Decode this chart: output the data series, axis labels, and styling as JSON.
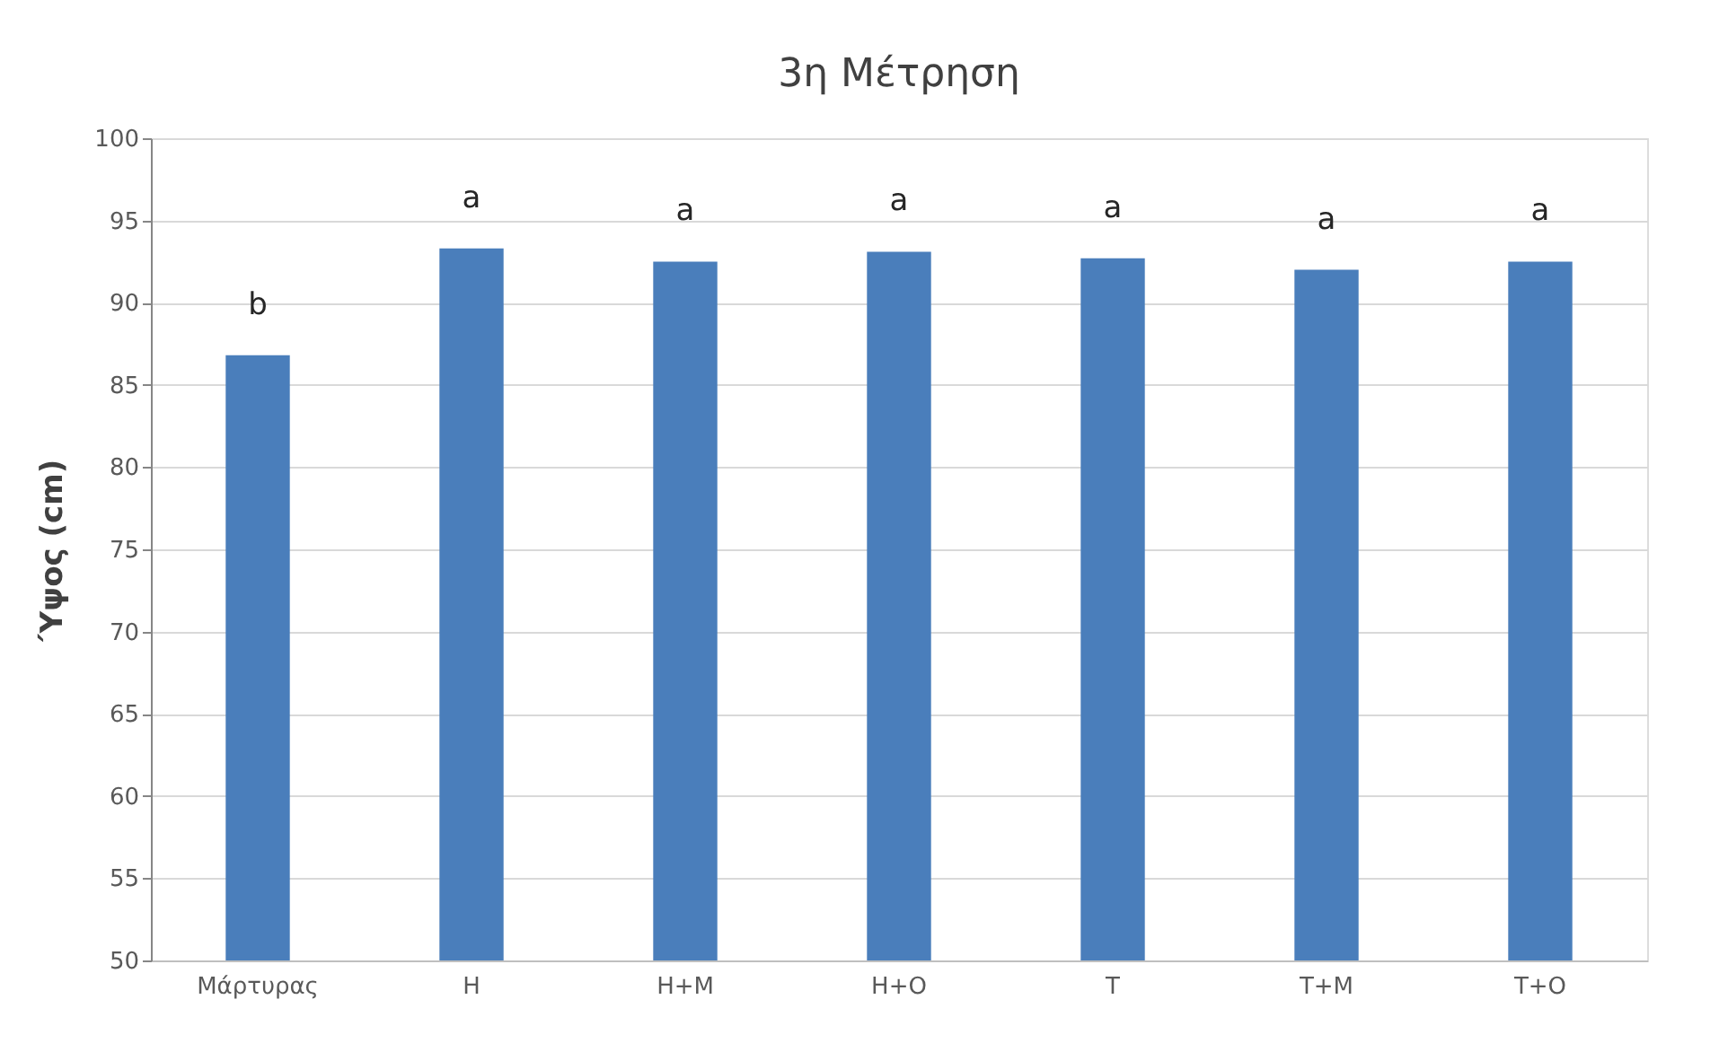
{
  "chart_data": {
    "type": "bar",
    "title": "3η Μέτρηση",
    "ylabel": "Ύψος (cm)",
    "categories": [
      "Μάρτυρας",
      "H",
      "H+M",
      "H+O",
      "T",
      "T+M",
      "T+O"
    ],
    "values": [
      86.8,
      93.3,
      92.5,
      93.1,
      92.7,
      92.0,
      92.5
    ],
    "color": "#4a7ebb",
    "ylim": [
      50,
      100
    ],
    "yticks": [
      50,
      55,
      60,
      65,
      70,
      75,
      80,
      85,
      90,
      95,
      100
    ],
    "grid": "y",
    "annotations": [
      "b",
      "a",
      "a",
      "a",
      "a",
      "a",
      "a"
    ]
  }
}
